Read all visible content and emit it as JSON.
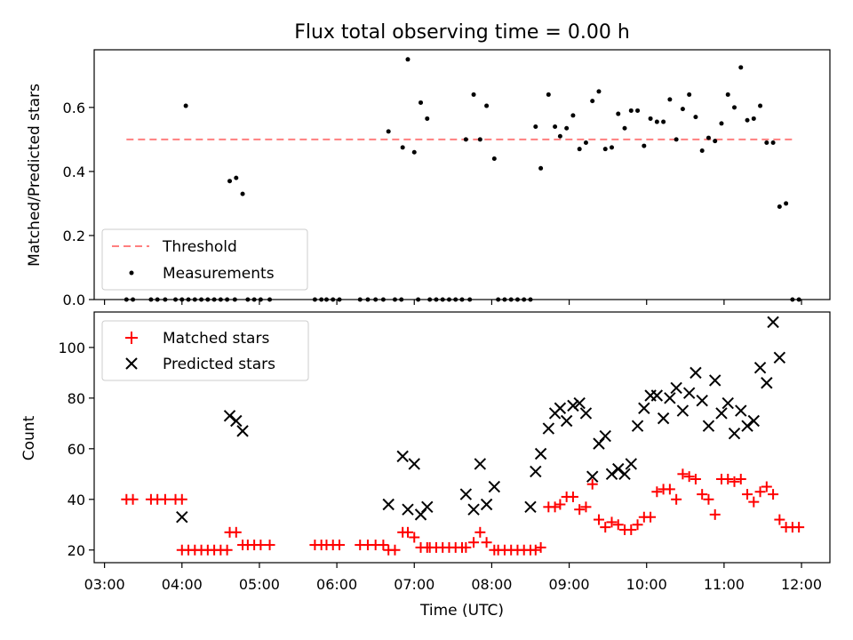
{
  "chart_data": [
    {
      "type": "scatter",
      "title": "Flux total observing time = 0.00 h",
      "xlabel": "",
      "ylabel": "Matched/Predicted stars",
      "ylim": [
        0,
        0.78
      ],
      "yticks": [
        0.0,
        0.2,
        0.4,
        0.6
      ],
      "ytick_labels": [
        "0.0",
        "0.2",
        "0.4",
        "0.6"
      ],
      "grid": false,
      "legend": "lower-left",
      "threshold": {
        "name": "Threshold",
        "y": 0.5,
        "x_range": [
          "03:17",
          "11:55"
        ],
        "color": "#ff7f7f",
        "style": "dashed"
      },
      "series": [
        {
          "name": "Measurements",
          "color": "#000000",
          "points": [
            [
              "03:17",
              0
            ],
            [
              "03:22",
              0
            ],
            [
              "03:36",
              0
            ],
            [
              "03:41",
              0
            ],
            [
              "03:47",
              0
            ],
            [
              "03:55",
              0
            ],
            [
              "04:00",
              0
            ],
            [
              "04:03",
              0.605
            ],
            [
              "04:05",
              0
            ],
            [
              "04:10",
              0
            ],
            [
              "04:15",
              0
            ],
            [
              "04:20",
              0
            ],
            [
              "04:25",
              0
            ],
            [
              "04:30",
              0
            ],
            [
              "04:35",
              0
            ],
            [
              "04:41",
              0
            ],
            [
              "04:37",
              0.37
            ],
            [
              "04:42",
              0.38
            ],
            [
              "04:47",
              0.33
            ],
            [
              "04:51",
              0
            ],
            [
              "04:56",
              0
            ],
            [
              "05:01",
              0
            ],
            [
              "05:08",
              0
            ],
            [
              "05:43",
              0
            ],
            [
              "05:48",
              0
            ],
            [
              "05:52",
              0
            ],
            [
              "05:57",
              0
            ],
            [
              "06:02",
              0
            ],
            [
              "06:18",
              0
            ],
            [
              "06:24",
              0
            ],
            [
              "06:30",
              0
            ],
            [
              "06:36",
              0
            ],
            [
              "06:40",
              0.525
            ],
            [
              "06:45",
              0
            ],
            [
              "06:50",
              0
            ],
            [
              "06:51",
              0.475
            ],
            [
              "06:55",
              0.75
            ],
            [
              "07:00",
              0.46
            ],
            [
              "07:03",
              0
            ],
            [
              "07:05",
              0.615
            ],
            [
              "07:10",
              0.565
            ],
            [
              "07:12",
              0
            ],
            [
              "07:17",
              0
            ],
            [
              "07:22",
              0
            ],
            [
              "07:27",
              0
            ],
            [
              "07:32",
              0
            ],
            [
              "07:37",
              0
            ],
            [
              "07:40",
              0.5
            ],
            [
              "07:43",
              0
            ],
            [
              "07:46",
              0.64
            ],
            [
              "07:51",
              0.5
            ],
            [
              "07:56",
              0.605
            ],
            [
              "08:02",
              0.44
            ],
            [
              "08:05",
              0
            ],
            [
              "08:10",
              0
            ],
            [
              "08:15",
              0
            ],
            [
              "08:20",
              0
            ],
            [
              "08:25",
              0
            ],
            [
              "08:30",
              0
            ],
            [
              "08:34",
              0.54
            ],
            [
              "08:38",
              0.41
            ],
            [
              "08:44",
              0.64
            ],
            [
              "08:49",
              0.54
            ],
            [
              "08:53",
              0.51
            ],
            [
              "08:58",
              0.535
            ],
            [
              "09:03",
              0.575
            ],
            [
              "09:08",
              0.47
            ],
            [
              "09:13",
              0.49
            ],
            [
              "09:18",
              0.62
            ],
            [
              "09:23",
              0.65
            ],
            [
              "09:28",
              0.47
            ],
            [
              "09:33",
              0.475
            ],
            [
              "09:38",
              0.58
            ],
            [
              "09:43",
              0.535
            ],
            [
              "09:48",
              0.59
            ],
            [
              "09:53",
              0.59
            ],
            [
              "09:58",
              0.48
            ],
            [
              "10:03",
              0.565
            ],
            [
              "10:08",
              0.555
            ],
            [
              "10:13",
              0.555
            ],
            [
              "10:18",
              0.625
            ],
            [
              "10:23",
              0.5
            ],
            [
              "10:28",
              0.595
            ],
            [
              "10:33",
              0.64
            ],
            [
              "10:38",
              0.57
            ],
            [
              "10:43",
              0.465
            ],
            [
              "10:48",
              0.505
            ],
            [
              "10:53",
              0.495
            ],
            [
              "10:58",
              0.55
            ],
            [
              "11:03",
              0.64
            ],
            [
              "11:08",
              0.6
            ],
            [
              "11:13",
              0.725
            ],
            [
              "11:18",
              0.56
            ],
            [
              "11:23",
              0.565
            ],
            [
              "11:28",
              0.605
            ],
            [
              "11:33",
              0.49
            ],
            [
              "11:38",
              0.49
            ],
            [
              "11:43",
              0.29
            ],
            [
              "11:48",
              0.3
            ],
            [
              "11:53",
              0
            ],
            [
              "11:58",
              0
            ]
          ]
        }
      ]
    },
    {
      "type": "scatter",
      "xlabel": "Time (UTC)",
      "ylabel": "Count",
      "ylim": [
        15,
        114
      ],
      "yticks": [
        20,
        40,
        60,
        80,
        100
      ],
      "ytick_labels": [
        "20",
        "40",
        "60",
        "80",
        "100"
      ],
      "xlim": [
        "02:52",
        "12:22"
      ],
      "xticks": [
        "03:00",
        "04:00",
        "05:00",
        "06:00",
        "07:00",
        "08:00",
        "09:00",
        "10:00",
        "11:00",
        "12:00"
      ],
      "grid": false,
      "legend": "upper-left",
      "series": [
        {
          "name": "Matched stars",
          "color": "#ff0000",
          "marker": "plus",
          "points": [
            [
              "03:17",
              40
            ],
            [
              "03:22",
              40
            ],
            [
              "03:36",
              40
            ],
            [
              "03:41",
              40
            ],
            [
              "03:47",
              40
            ],
            [
              "03:55",
              40
            ],
            [
              "04:00",
              40
            ],
            [
              "04:00",
              20
            ],
            [
              "04:05",
              20
            ],
            [
              "04:10",
              20
            ],
            [
              "04:15",
              20
            ],
            [
              "04:20",
              20
            ],
            [
              "04:25",
              20
            ],
            [
              "04:30",
              20
            ],
            [
              "04:35",
              20
            ],
            [
              "04:37",
              27
            ],
            [
              "04:42",
              27
            ],
            [
              "04:47",
              22
            ],
            [
              "04:51",
              22
            ],
            [
              "04:56",
              22
            ],
            [
              "05:01",
              22
            ],
            [
              "05:08",
              22
            ],
            [
              "05:43",
              22
            ],
            [
              "05:48",
              22
            ],
            [
              "05:52",
              22
            ],
            [
              "05:57",
              22
            ],
            [
              "06:02",
              22
            ],
            [
              "06:18",
              22
            ],
            [
              "06:24",
              22
            ],
            [
              "06:30",
              22
            ],
            [
              "06:36",
              22
            ],
            [
              "06:40",
              20
            ],
            [
              "06:45",
              20
            ],
            [
              "06:51",
              27
            ],
            [
              "06:55",
              27
            ],
            [
              "07:00",
              25
            ],
            [
              "07:05",
              21
            ],
            [
              "07:10",
              21
            ],
            [
              "07:12",
              21
            ],
            [
              "07:17",
              21
            ],
            [
              "07:22",
              21
            ],
            [
              "07:27",
              21
            ],
            [
              "07:32",
              21
            ],
            [
              "07:37",
              21
            ],
            [
              "07:40",
              21
            ],
            [
              "07:46",
              23
            ],
            [
              "07:51",
              27
            ],
            [
              "07:56",
              23
            ],
            [
              "08:02",
              20
            ],
            [
              "08:05",
              20
            ],
            [
              "08:10",
              20
            ],
            [
              "08:15",
              20
            ],
            [
              "08:20",
              20
            ],
            [
              "08:25",
              20
            ],
            [
              "08:30",
              20
            ],
            [
              "08:34",
              20
            ],
            [
              "08:38",
              21
            ],
            [
              "08:44",
              37
            ],
            [
              "08:49",
              37
            ],
            [
              "08:53",
              38
            ],
            [
              "08:58",
              41
            ],
            [
              "09:03",
              41
            ],
            [
              "09:08",
              36
            ],
            [
              "09:13",
              37
            ],
            [
              "09:18",
              46
            ],
            [
              "09:23",
              32
            ],
            [
              "09:28",
              29
            ],
            [
              "09:33",
              31
            ],
            [
              "09:38",
              30
            ],
            [
              "09:43",
              28
            ],
            [
              "09:48",
              28
            ],
            [
              "09:53",
              30
            ],
            [
              "09:58",
              33
            ],
            [
              "10:03",
              33
            ],
            [
              "10:08",
              43
            ],
            [
              "10:13",
              44
            ],
            [
              "10:18",
              44
            ],
            [
              "10:23",
              40
            ],
            [
              "10:28",
              50
            ],
            [
              "10:33",
              49
            ],
            [
              "10:38",
              48
            ],
            [
              "10:43",
              42
            ],
            [
              "10:48",
              40
            ],
            [
              "10:53",
              34
            ],
            [
              "10:58",
              48
            ],
            [
              "11:03",
              48
            ],
            [
              "11:08",
              47
            ],
            [
              "11:13",
              48
            ],
            [
              "11:18",
              42
            ],
            [
              "11:23",
              39
            ],
            [
              "11:28",
              43
            ],
            [
              "11:33",
              45
            ],
            [
              "11:38",
              42
            ],
            [
              "11:43",
              32
            ],
            [
              "11:48",
              29
            ],
            [
              "11:53",
              29
            ],
            [
              "11:58",
              29
            ]
          ]
        },
        {
          "name": "Predicted stars",
          "color": "#000000",
          "marker": "x",
          "points": [
            [
              "04:00",
              33
            ],
            [
              "04:37",
              73
            ],
            [
              "04:42",
              71
            ],
            [
              "04:47",
              67
            ],
            [
              "06:40",
              38
            ],
            [
              "06:51",
              57
            ],
            [
              "06:55",
              36
            ],
            [
              "07:00",
              54
            ],
            [
              "07:05",
              34
            ],
            [
              "07:10",
              37
            ],
            [
              "07:40",
              42
            ],
            [
              "07:46",
              36
            ],
            [
              "07:51",
              54
            ],
            [
              "07:56",
              38
            ],
            [
              "08:02",
              45
            ],
            [
              "08:30",
              37
            ],
            [
              "08:34",
              51
            ],
            [
              "08:38",
              58
            ],
            [
              "08:44",
              68
            ],
            [
              "08:49",
              74
            ],
            [
              "08:53",
              76
            ],
            [
              "08:58",
              71
            ],
            [
              "09:03",
              77
            ],
            [
              "09:08",
              78
            ],
            [
              "09:13",
              74
            ],
            [
              "09:18",
              49
            ],
            [
              "09:23",
              62
            ],
            [
              "09:28",
              65
            ],
            [
              "09:33",
              50
            ],
            [
              "09:38",
              52
            ],
            [
              "09:43",
              50
            ],
            [
              "09:48",
              54
            ],
            [
              "09:53",
              69
            ],
            [
              "09:58",
              76
            ],
            [
              "10:03",
              81
            ],
            [
              "10:08",
              81
            ],
            [
              "10:13",
              72
            ],
            [
              "10:18",
              80
            ],
            [
              "10:23",
              84
            ],
            [
              "10:28",
              75
            ],
            [
              "10:33",
              82
            ],
            [
              "10:38",
              90
            ],
            [
              "10:43",
              79
            ],
            [
              "10:48",
              69
            ],
            [
              "10:53",
              87
            ],
            [
              "10:58",
              74
            ],
            [
              "11:03",
              78
            ],
            [
              "11:08",
              66
            ],
            [
              "11:13",
              75
            ],
            [
              "11:18",
              69
            ],
            [
              "11:23",
              71
            ],
            [
              "11:28",
              92
            ],
            [
              "11:33",
              86
            ],
            [
              "11:38",
              110
            ],
            [
              "11:43",
              96
            ]
          ]
        }
      ]
    }
  ]
}
